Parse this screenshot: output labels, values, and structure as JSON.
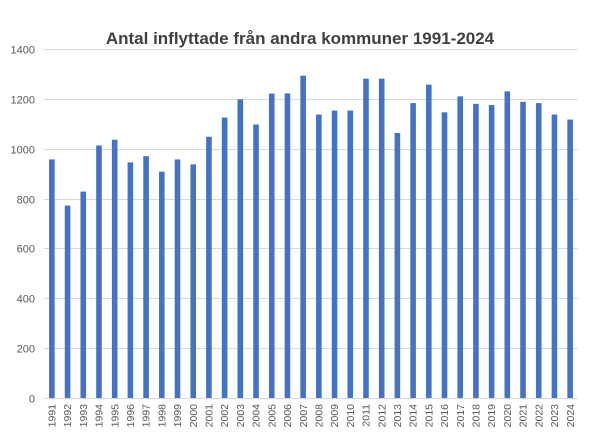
{
  "chart_data": {
    "type": "bar",
    "title": "Antal inflyttade från andra kommuner 1991-2024",
    "xlabel": "",
    "ylabel": "",
    "ylim": [
      0,
      1400
    ],
    "yticks": [
      0,
      200,
      400,
      600,
      800,
      1000,
      1200,
      1400
    ],
    "grid": true,
    "legend": "none",
    "bar_color": "#4472C4",
    "grid_color": "#D9D9D9",
    "categories": [
      "1991",
      "1992",
      "1993",
      "1994",
      "1995",
      "1996",
      "1997",
      "1998",
      "1999",
      "2000",
      "2001",
      "2002",
      "2003",
      "2004",
      "2005",
      "2006",
      "2007",
      "2008",
      "2009",
      "2010",
      "2011",
      "2012",
      "2013",
      "2014",
      "2015",
      "2016",
      "2017",
      "2018",
      "2019",
      "2020",
      "2021",
      "2022",
      "2023",
      "2024"
    ],
    "values": [
      957,
      772,
      828,
      1013,
      1036,
      945,
      970,
      908,
      957,
      937,
      1048,
      1125,
      1198,
      1097,
      1221,
      1222,
      1293,
      1137,
      1153,
      1153,
      1281,
      1281,
      1063,
      1183,
      1257,
      1146,
      1210,
      1180,
      1175,
      1230,
      1188,
      1183,
      1137,
      1117
    ]
  }
}
